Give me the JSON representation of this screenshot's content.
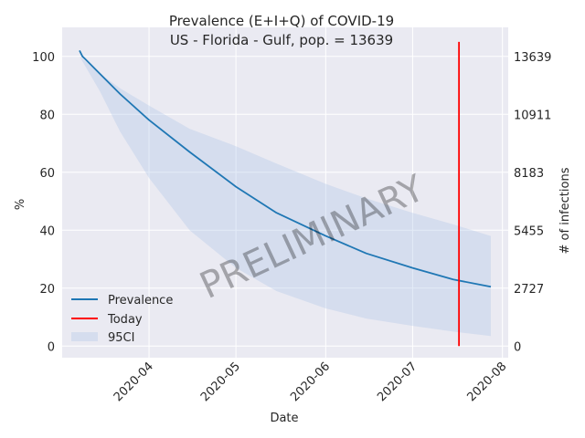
{
  "chart_data": {
    "type": "line",
    "title": "Prevalence (E+I+Q) of COVID-19",
    "subtitle": "US - Florida - Gulf, pop. = 13639",
    "xlabel": "Date",
    "ylabel": "%",
    "ylabel_right": "# of infections",
    "watermark": "PRELIMINARY",
    "xlim": [
      "2020-03-02",
      "2020-08-03"
    ],
    "ylim": [
      -4,
      110
    ],
    "x_ticks": [
      "2020-04",
      "2020-05",
      "2020-06",
      "2020-07",
      "2020-08"
    ],
    "x_tick_dates": [
      "2020-04-01",
      "2020-05-01",
      "2020-06-01",
      "2020-07-01",
      "2020-08-01"
    ],
    "y_ticks": [
      0,
      20,
      40,
      60,
      80,
      100
    ],
    "y_tick_labels": [
      "0",
      "20",
      "40",
      "60",
      "80",
      "100"
    ],
    "y2_tick_labels": [
      "0",
      "2727",
      "5455",
      "8183",
      "10911",
      "13639"
    ],
    "grid": true,
    "legend_position": "bottom-left",
    "series": [
      {
        "name": "Prevalence",
        "color": "#1f77b4",
        "kind": "line",
        "x": [
          "2020-03-08",
          "2020-03-09",
          "2020-03-10",
          "2020-03-15",
          "2020-03-22",
          "2020-04-01",
          "2020-04-15",
          "2020-05-01",
          "2020-05-15",
          "2020-06-01",
          "2020-06-15",
          "2020-07-01",
          "2020-07-15",
          "2020-07-28"
        ],
        "y": [
          102,
          100,
          99,
          94,
          87,
          78,
          67,
          55,
          46,
          38,
          32,
          27,
          23,
          20.5
        ]
      },
      {
        "name": "95CI",
        "color": "#aec7e8",
        "kind": "band",
        "x": [
          "2020-03-08",
          "2020-03-15",
          "2020-03-22",
          "2020-04-01",
          "2020-04-15",
          "2020-05-01",
          "2020-05-15",
          "2020-06-01",
          "2020-06-15",
          "2020-07-01",
          "2020-07-15",
          "2020-07-28"
        ],
        "lower": [
          100,
          88,
          74,
          58,
          40,
          27,
          19,
          13,
          9.5,
          7,
          5,
          3.5
        ],
        "upper": [
          100,
          94,
          89,
          83,
          75,
          69,
          63,
          56,
          51,
          46,
          42,
          38
        ]
      },
      {
        "name": "Today",
        "color": "#ff0000",
        "kind": "vline",
        "x": "2020-07-17",
        "y": [
          0,
          105
        ]
      }
    ]
  }
}
